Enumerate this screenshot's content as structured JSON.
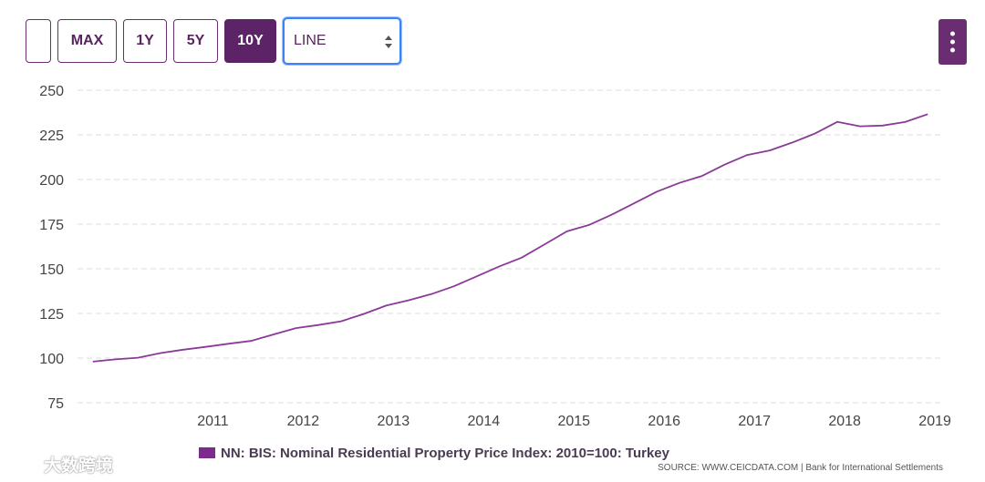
{
  "toolbar": {
    "buttons": [
      {
        "label": ""
      },
      {
        "label": "MAX"
      },
      {
        "label": "1Y"
      },
      {
        "label": "5Y"
      },
      {
        "label": "10Y",
        "active": true
      }
    ],
    "chart_type_select": {
      "value": "LINE"
    },
    "menu_icon": "vertical-dots-icon"
  },
  "colors": {
    "line": "#8a3a97",
    "accent": "#5c2467",
    "grid": "#dcdcdc"
  },
  "chart_data": {
    "type": "line",
    "title": "",
    "xlabel": "",
    "ylabel": "",
    "ylim": [
      75,
      250
    ],
    "yticks": [
      75,
      100,
      125,
      150,
      175,
      200,
      225,
      250
    ],
    "xlim": [
      2010.0,
      2019.6
    ],
    "xticks": [
      "2011",
      "2012",
      "2013",
      "2014",
      "2015",
      "2016",
      "2017",
      "2018",
      "2019"
    ],
    "grid": true,
    "legend_position": "bottom",
    "series": [
      {
        "name": "NN: BIS: Nominal Residential Property Price Index: 2010=100: Turkey",
        "x": [
          2010.17,
          2010.42,
          2010.67,
          2010.92,
          2011.17,
          2011.42,
          2011.67,
          2011.92,
          2012.17,
          2012.42,
          2012.67,
          2012.92,
          2013.17,
          2013.42,
          2013.67,
          2013.92,
          2014.17,
          2014.42,
          2014.67,
          2014.92,
          2015.17,
          2015.42,
          2015.67,
          2015.92,
          2016.17,
          2016.42,
          2016.67,
          2016.92,
          2017.17,
          2017.42,
          2017.67,
          2017.92,
          2018.17,
          2018.42,
          2018.67,
          2018.92,
          2019.17,
          2019.42
        ],
        "y": [
          98.0,
          99.3,
          100.2,
          102.8,
          104.7,
          106.3,
          108.0,
          109.6,
          113.2,
          116.8,
          118.5,
          120.6,
          124.7,
          129.4,
          132.4,
          135.8,
          140.2,
          145.7,
          151.2,
          156.2,
          163.5,
          170.9,
          174.6,
          180.3,
          186.8,
          193.2,
          198.1,
          202.0,
          208.3,
          213.7,
          216.3,
          220.7,
          225.7,
          232.3,
          229.8,
          230.2,
          232.2,
          236.6
        ]
      }
    ]
  },
  "legend": {
    "label": "NN: BIS: Nominal Residential Property Price Index: 2010=100: Turkey"
  },
  "source": "SOURCE: WWW.CEICDATA.COM | Bank for International Settlements",
  "watermark": "大数跨境"
}
